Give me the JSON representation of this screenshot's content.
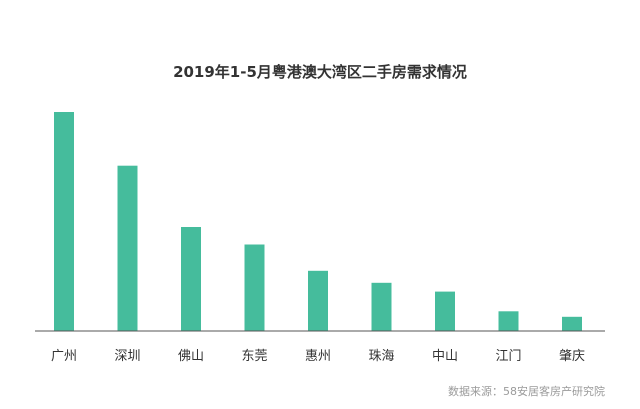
{
  "chart_data": {
    "type": "bar",
    "title": "2019年1-5月粤港澳大湾区二手房需求情况",
    "categories": [
      "广州",
      "深圳",
      "佛山",
      "东莞",
      "惠州",
      "珠海",
      "中山",
      "江门",
      "肇庆"
    ],
    "values": [
      100,
      75.5,
      47.5,
      39.5,
      27.5,
      22,
      18,
      9,
      6.5
    ],
    "xlabel": "",
    "ylabel": "",
    "ylim": [
      0,
      100
    ],
    "grid": false,
    "legend": "none",
    "bar_color": "#45bc9c",
    "axis_color": "#555555"
  },
  "source": "数据来源：58安居客房产研究院"
}
